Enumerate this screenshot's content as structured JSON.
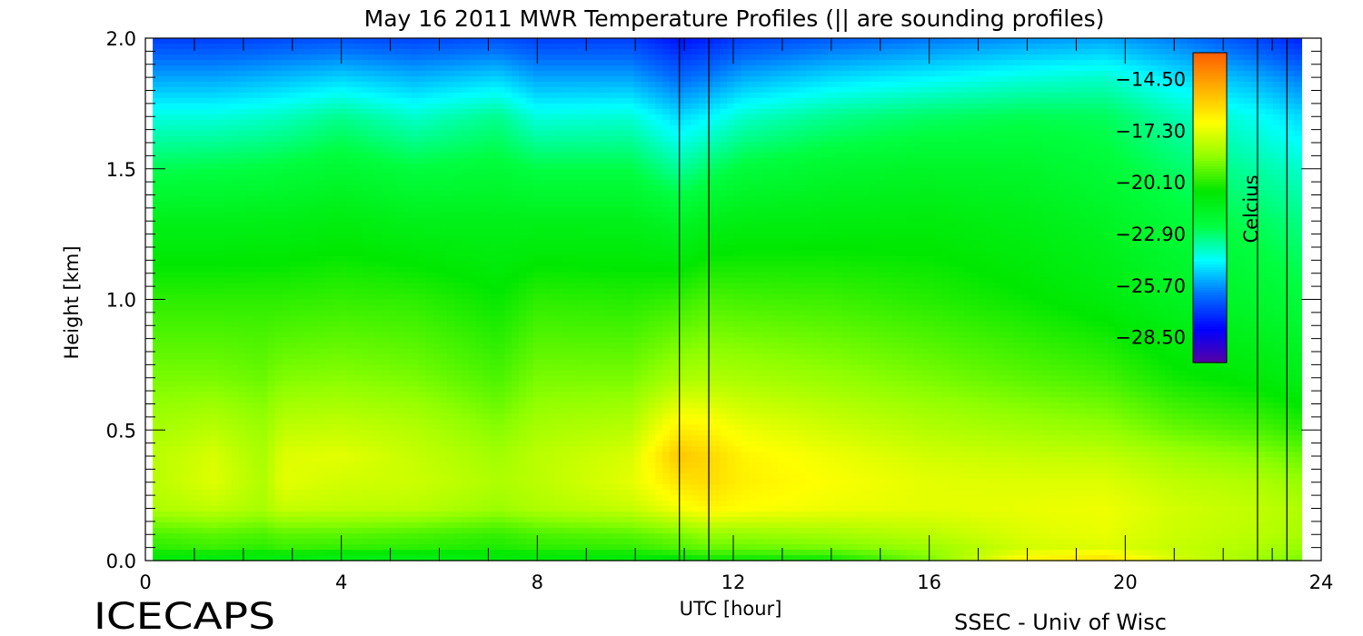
{
  "chart_data": {
    "type": "heatmap",
    "title": "May 16 2011 MWR Temperature Profiles (|| are sounding profiles)",
    "xlabel": "UTC [hour]",
    "ylabel": "Height [km]",
    "xlim": [
      0,
      24
    ],
    "ylim": [
      0,
      2
    ],
    "x_ticks": [
      0,
      4,
      8,
      12,
      16,
      20,
      24
    ],
    "x_tick_labels": [
      "0",
      "4",
      "8",
      "12",
      "16",
      "20",
      "24"
    ],
    "y_ticks": [
      0.0,
      0.5,
      1.0,
      1.5,
      2.0
    ],
    "y_tick_labels": [
      "0.0",
      "0.5",
      "1.0",
      "1.5",
      "2.0"
    ],
    "data_x_range": [
      0.15,
      23.6
    ],
    "grid": false,
    "colorbar": {
      "label": "Celcius",
      "min": -29.9,
      "max": -13.1,
      "tick_labels": [
        "-14.50",
        "-17.30",
        "-20.10",
        "-22.90",
        "-25.70",
        "-28.50"
      ],
      "tick_values": [
        -14.5,
        -17.3,
        -20.1,
        -22.9,
        -25.7,
        -28.5
      ],
      "placement": "inside-right",
      "colors": [
        "#5a00a0",
        "#0000ff",
        "#0070ff",
        "#00ffff",
        "#00ff40",
        "#00e800",
        "#90ff00",
        "#ffff00",
        "#ffb000",
        "#ff6000"
      ]
    },
    "sounding_profiles": [
      {
        "start": 10.9,
        "end": 11.5
      },
      {
        "start": 22.7,
        "end": 23.3
      }
    ],
    "heights_km": [
      0.0,
      0.05,
      0.1,
      0.2,
      0.3,
      0.4,
      0.5,
      0.7,
      1.0,
      1.3,
      1.5,
      1.7,
      1.85,
      2.0
    ],
    "profiles": [
      {
        "t": 0.2,
        "temps": [
          -21.0,
          -20.0,
          -19.6,
          -18.2,
          -18.0,
          -18.0,
          -18.3,
          -19.0,
          -20.0,
          -21.3,
          -22.6,
          -24.0,
          -25.5,
          -27.0
        ]
      },
      {
        "t": 1.4,
        "temps": [
          -21.2,
          -19.8,
          -19.4,
          -17.9,
          -17.4,
          -17.5,
          -18.0,
          -19.0,
          -20.0,
          -21.3,
          -22.5,
          -24.0,
          -25.5,
          -27.0
        ]
      },
      {
        "t": 2.4,
        "temps": [
          -21.2,
          -20.0,
          -19.6,
          -18.3,
          -18.2,
          -18.3,
          -18.5,
          -19.2,
          -20.0,
          -21.2,
          -22.4,
          -23.8,
          -25.3,
          -26.9
        ]
      },
      {
        "t": 2.8,
        "temps": [
          -21.2,
          -19.8,
          -19.4,
          -17.8,
          -17.3,
          -17.4,
          -17.9,
          -18.9,
          -20.0,
          -21.2,
          -22.3,
          -23.7,
          -25.2,
          -26.8
        ]
      },
      {
        "t": 4.0,
        "temps": [
          -21.4,
          -19.9,
          -19.4,
          -17.9,
          -17.6,
          -17.3,
          -17.8,
          -18.8,
          -19.9,
          -21.0,
          -22.0,
          -23.2,
          -24.9,
          -26.7
        ]
      },
      {
        "t": 5.5,
        "temps": [
          -21.4,
          -20.0,
          -19.6,
          -18.0,
          -17.7,
          -17.8,
          -18.1,
          -19.0,
          -20.0,
          -21.3,
          -22.4,
          -23.8,
          -25.3,
          -26.9
        ]
      },
      {
        "t": 7.2,
        "temps": [
          -21.0,
          -20.2,
          -19.9,
          -18.5,
          -18.2,
          -18.4,
          -18.8,
          -19.6,
          -20.5,
          -21.3,
          -22.2,
          -23.2,
          -24.9,
          -26.7
        ]
      },
      {
        "t": 8.0,
        "temps": [
          -21.0,
          -20.0,
          -19.6,
          -18.2,
          -18.0,
          -18.0,
          -18.3,
          -19.0,
          -20.0,
          -21.3,
          -22.5,
          -24.0,
          -25.5,
          -27.0
        ]
      },
      {
        "t": 9.9,
        "temps": [
          -21.0,
          -19.9,
          -19.4,
          -17.8,
          -17.3,
          -17.5,
          -18.0,
          -19.0,
          -20.1,
          -21.3,
          -22.5,
          -23.9,
          -25.5,
          -27.0
        ]
      },
      {
        "t": 10.9,
        "temps": [
          -20.8,
          -19.5,
          -19.0,
          -17.0,
          -16.2,
          -15.5,
          -16.4,
          -18.3,
          -19.9,
          -21.7,
          -23.3,
          -24.8,
          -26.3,
          -27.8
        ]
      },
      {
        "t": 11.5,
        "temps": [
          -20.5,
          -19.2,
          -18.6,
          -16.6,
          -16.0,
          -15.9,
          -16.6,
          -18.2,
          -19.6,
          -21.3,
          -22.8,
          -24.4,
          -26.0,
          -27.5
        ]
      },
      {
        "t": 12.2,
        "temps": [
          -20.5,
          -19.2,
          -18.6,
          -16.8,
          -16.5,
          -16.6,
          -17.1,
          -18.3,
          -19.7,
          -21.1,
          -22.3,
          -23.8,
          -25.4,
          -27.0
        ]
      },
      {
        "t": 14.0,
        "temps": [
          -20.5,
          -19.0,
          -18.4,
          -17.1,
          -16.9,
          -17.1,
          -17.6,
          -18.6,
          -19.8,
          -21.0,
          -21.9,
          -23.2,
          -24.8,
          -26.5
        ]
      },
      {
        "t": 16.0,
        "temps": [
          -19.0,
          -18.5,
          -18.0,
          -17.3,
          -17.3,
          -17.6,
          -18.1,
          -19.0,
          -20.1,
          -20.9,
          -21.7,
          -22.8,
          -24.4,
          -26.1
        ]
      },
      {
        "t": 18.0,
        "temps": [
          -16.5,
          -17.6,
          -17.4,
          -17.2,
          -17.4,
          -17.8,
          -18.4,
          -19.4,
          -20.5,
          -21.2,
          -21.8,
          -22.6,
          -24.0,
          -25.7
        ]
      },
      {
        "t": 19.6,
        "temps": [
          -16.0,
          -17.4,
          -17.2,
          -17.1,
          -17.4,
          -17.9,
          -18.6,
          -19.7,
          -20.9,
          -21.6,
          -22.2,
          -22.7,
          -23.8,
          -25.5
        ]
      },
      {
        "t": 21.0,
        "temps": [
          -17.5,
          -17.8,
          -17.7,
          -17.6,
          -17.9,
          -18.4,
          -19.2,
          -20.4,
          -21.5,
          -22.2,
          -22.8,
          -23.5,
          -24.6,
          -26.0
        ]
      },
      {
        "t": 22.7,
        "temps": [
          -18.5,
          -18.2,
          -18.0,
          -17.9,
          -18.2,
          -18.8,
          -19.6,
          -20.8,
          -21.9,
          -22.7,
          -23.4,
          -24.2,
          -25.4,
          -26.9
        ]
      },
      {
        "t": 23.6,
        "temps": [
          -19.0,
          -18.6,
          -18.3,
          -18.2,
          -18.6,
          -19.2,
          -20.0,
          -21.2,
          -22.3,
          -23.1,
          -23.8,
          -24.8,
          -26.0,
          -27.5
        ]
      }
    ]
  },
  "footer": {
    "logo": "ICECAPS",
    "credit": "SSEC - Univ of Wisc"
  }
}
